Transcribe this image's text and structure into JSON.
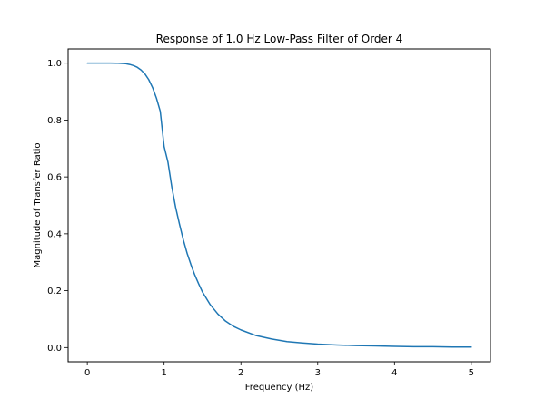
{
  "chart_data": {
    "type": "line",
    "title": "Response of 1.0 Hz Low-Pass Filter of Order 4",
    "xlabel": "Frequency (Hz)",
    "ylabel": "Magnitude of Transfer Ratio",
    "xlim": [
      -0.25,
      5.25
    ],
    "ylim": [
      -0.05,
      1.05
    ],
    "xticks": [
      0,
      1,
      2,
      3,
      4,
      5
    ],
    "xtick_labels": [
      "0",
      "1",
      "2",
      "3",
      "4",
      "5"
    ],
    "yticks": [
      0.0,
      0.2,
      0.4,
      0.6,
      0.8,
      1.0
    ],
    "ytick_labels": [
      "0.0",
      "0.2",
      "0.4",
      "0.6",
      "0.8",
      "1.0"
    ],
    "grid": false,
    "series": [
      {
        "color": "#1f77b4",
        "x": [
          0,
          0.1,
          0.2,
          0.3,
          0.4,
          0.5,
          0.55,
          0.6,
          0.65,
          0.7,
          0.75,
          0.8,
          0.85,
          0.9,
          0.95,
          1.0,
          1.05,
          1.1,
          1.15,
          1.2,
          1.25,
          1.3,
          1.35,
          1.4,
          1.45,
          1.5,
          1.6,
          1.7,
          1.8,
          1.9,
          2.0,
          2.2,
          2.4,
          2.6,
          2.8,
          3.0,
          3.25,
          3.5,
          3.75,
          4.0,
          4.25,
          4.5,
          4.75,
          5.0
        ],
        "y": [
          1.0,
          1.0,
          1.0,
          1.0,
          0.9997,
          0.998,
          0.9955,
          0.9917,
          0.9855,
          0.976,
          0.962,
          0.942,
          0.914,
          0.877,
          0.8305,
          0.7071,
          0.652,
          0.565,
          0.493,
          0.434,
          0.379,
          0.331,
          0.291,
          0.255,
          0.224,
          0.195,
          0.151,
          0.118,
          0.093,
          0.075,
          0.062,
          0.042,
          0.03,
          0.021,
          0.016,
          0.012,
          0.009,
          0.007,
          0.006,
          0.004,
          0.003,
          0.003,
          0.002,
          0.002
        ]
      }
    ]
  }
}
